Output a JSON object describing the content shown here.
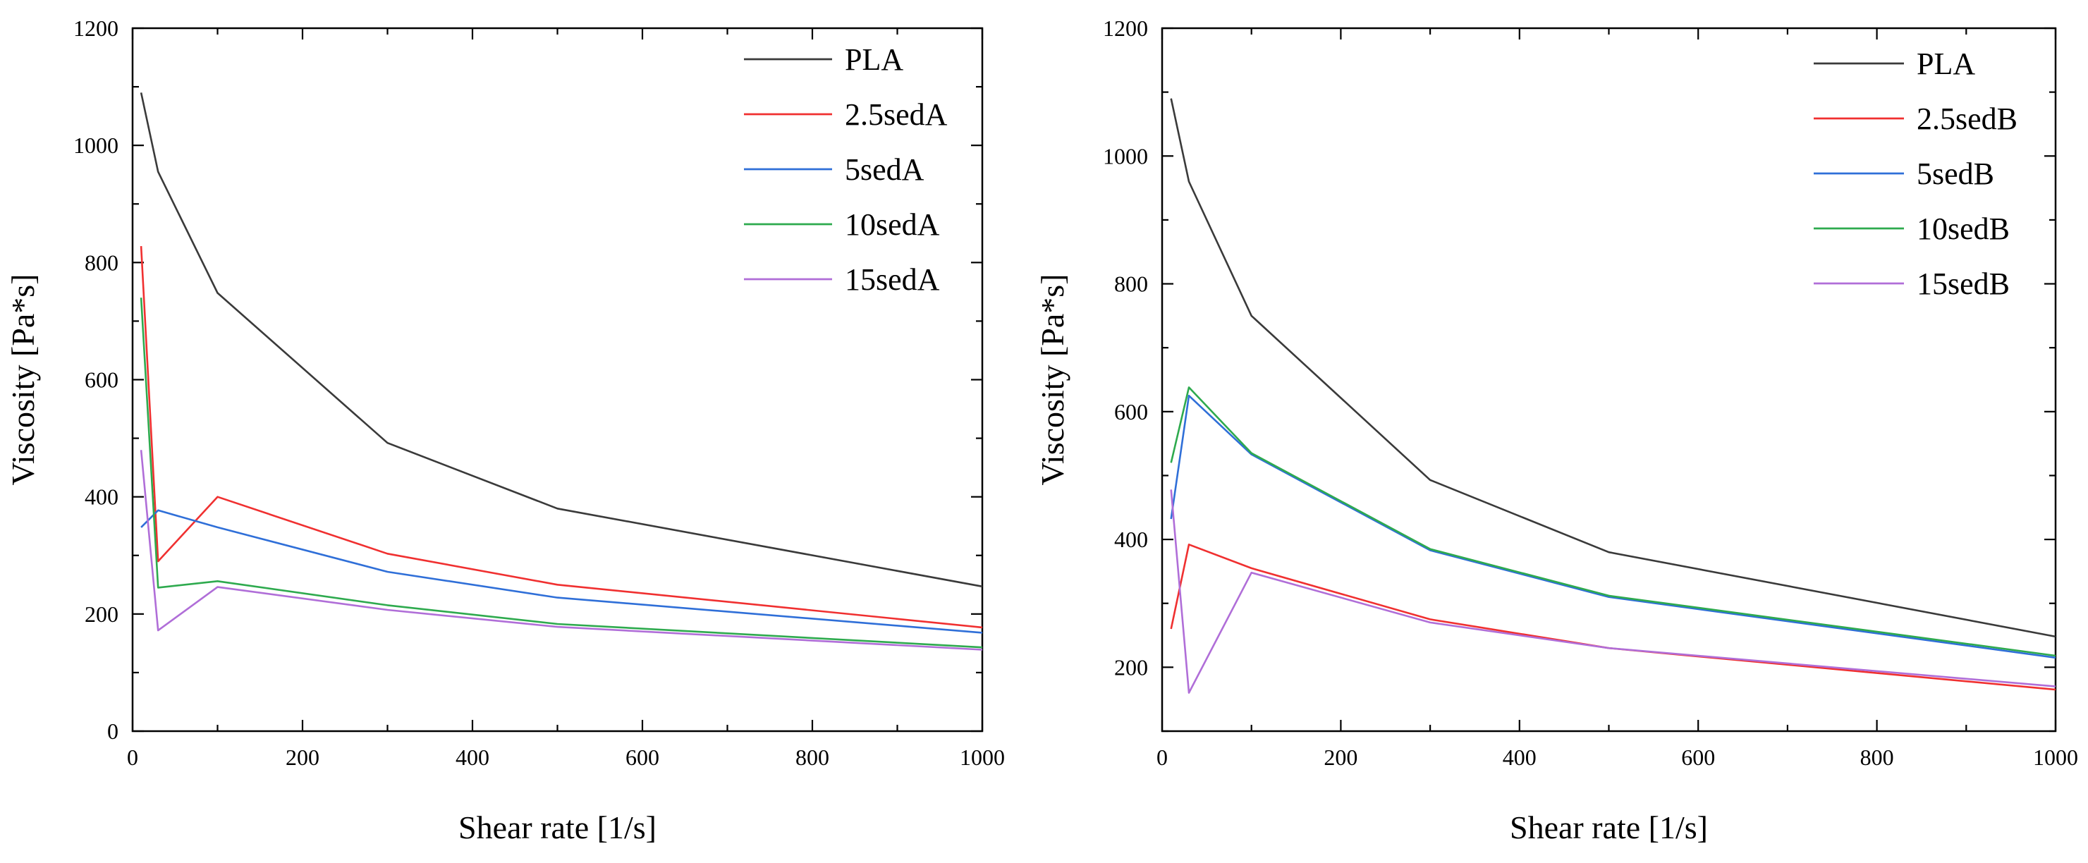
{
  "colors": {
    "PLA": "#3a3a3a",
    "red": "#f03030",
    "blue": "#2f6fd8",
    "green": "#2eaa4e",
    "purple": "#b06ed8"
  },
  "chart_data": [
    {
      "type": "line",
      "title": "",
      "xlabel": "Shear rate [1/s]",
      "ylabel": "Viscosity [Pa*s]",
      "xlim": [
        0,
        1000
      ],
      "ylim": [
        0,
        1200
      ],
      "xticks": [
        0,
        200,
        400,
        600,
        800,
        1000
      ],
      "yticks": [
        0,
        200,
        400,
        600,
        800,
        1000,
        1200
      ],
      "xtick_labels": [
        "0",
        "200",
        "400",
        "600",
        "800",
        "1000"
      ],
      "ytick_labels": [
        "0",
        "200",
        "400",
        "600",
        "800",
        "1000",
        "1200"
      ],
      "legend_position": "top-right",
      "series": [
        {
          "name": "PLA",
          "color": "#3a3a3a",
          "x": [
            10,
            30,
            100,
            300,
            500,
            1000
          ],
          "y": [
            1090,
            955,
            748,
            492,
            380,
            247
          ]
        },
        {
          "name": "2.5sedA",
          "color": "#f03030",
          "x": [
            10,
            30,
            100,
            300,
            500,
            1000
          ],
          "y": [
            828,
            290,
            400,
            303,
            250,
            177
          ]
        },
        {
          "name": "5sedA",
          "color": "#2f6fd8",
          "x": [
            10,
            30,
            100,
            300,
            500,
            1000
          ],
          "y": [
            348,
            377,
            348,
            272,
            228,
            168
          ]
        },
        {
          "name": "10sedA",
          "color": "#2eaa4e",
          "x": [
            10,
            30,
            100,
            300,
            500,
            1000
          ],
          "y": [
            740,
            245,
            256,
            215,
            183,
            143
          ]
        },
        {
          "name": "15sedA",
          "color": "#b06ed8",
          "x": [
            10,
            30,
            100,
            300,
            500,
            1000
          ],
          "y": [
            480,
            172,
            246,
            207,
            178,
            139
          ]
        }
      ]
    },
    {
      "type": "line",
      "title": "",
      "xlabel": "Shear rate [1/s]",
      "ylabel": "Viscosity [Pa*s]",
      "xlim": [
        0,
        1000
      ],
      "ylim": [
        100,
        1200
      ],
      "xticks": [
        0,
        200,
        400,
        600,
        800,
        1000
      ],
      "yticks": [
        200,
        400,
        600,
        800,
        1000,
        1200
      ],
      "xtick_labels": [
        "0",
        "200",
        "400",
        "600",
        "800",
        "1000"
      ],
      "ytick_labels": [
        "200",
        "400",
        "600",
        "800",
        "1000",
        "1200"
      ],
      "legend_position": "top-right",
      "series": [
        {
          "name": "PLA",
          "color": "#3a3a3a",
          "x": [
            10,
            30,
            100,
            300,
            500,
            1000
          ],
          "y": [
            1090,
            960,
            750,
            493,
            380,
            248
          ]
        },
        {
          "name": "2.5sedB",
          "color": "#f03030",
          "x": [
            10,
            30,
            100,
            300,
            500,
            1000
          ],
          "y": [
            260,
            392,
            355,
            275,
            230,
            165
          ]
        },
        {
          "name": "5sedB",
          "color": "#2f6fd8",
          "x": [
            10,
            30,
            100,
            300,
            500,
            1000
          ],
          "y": [
            432,
            625,
            533,
            383,
            310,
            215
          ]
        },
        {
          "name": "10sedB",
          "color": "#2eaa4e",
          "x": [
            10,
            30,
            100,
            300,
            500,
            1000
          ],
          "y": [
            520,
            638,
            535,
            385,
            312,
            218
          ]
        },
        {
          "name": "15sedB",
          "color": "#b06ed8",
          "x": [
            10,
            30,
            100,
            300,
            500,
            1000
          ],
          "y": [
            478,
            160,
            348,
            270,
            230,
            170
          ]
        }
      ]
    }
  ]
}
